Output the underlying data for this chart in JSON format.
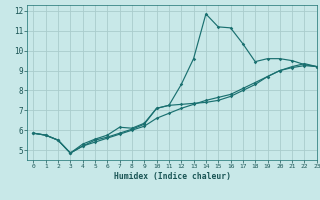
{
  "xlabel": "Humidex (Indice chaleur)",
  "ylabel": "",
  "bg_color": "#c8e8e8",
  "grid_color": "#aacccc",
  "line_color": "#1a7070",
  "xlim": [
    -0.5,
    23
  ],
  "ylim": [
    4.5,
    12.3
  ],
  "xticks": [
    0,
    1,
    2,
    3,
    4,
    5,
    6,
    7,
    8,
    9,
    10,
    11,
    12,
    13,
    14,
    15,
    16,
    17,
    18,
    19,
    20,
    21,
    22,
    23
  ],
  "yticks": [
    5,
    6,
    7,
    8,
    9,
    10,
    11,
    12
  ],
  "line1_x": [
    0,
    1,
    2,
    3,
    4,
    5,
    6,
    7,
    8,
    9,
    10,
    11,
    12,
    13,
    14,
    15,
    16,
    17,
    18,
    19,
    20,
    21,
    22,
    23
  ],
  "line1_y": [
    5.85,
    5.75,
    5.5,
    4.85,
    5.2,
    5.5,
    5.65,
    5.85,
    6.05,
    6.3,
    7.1,
    7.25,
    8.3,
    9.6,
    11.85,
    11.2,
    11.15,
    10.35,
    9.45,
    9.6,
    9.6,
    9.5,
    9.3,
    9.2
  ],
  "line2_x": [
    0,
    1,
    2,
    3,
    4,
    5,
    6,
    7,
    8,
    9,
    10,
    11,
    12,
    13,
    14,
    15,
    16,
    17,
    18,
    19,
    20,
    21,
    22,
    23
  ],
  "line2_y": [
    5.85,
    5.75,
    5.5,
    4.85,
    5.3,
    5.55,
    5.75,
    6.15,
    6.1,
    6.35,
    7.1,
    7.25,
    7.3,
    7.35,
    7.4,
    7.5,
    7.7,
    8.0,
    8.3,
    8.7,
    9.0,
    9.2,
    9.35,
    9.2
  ],
  "line3_x": [
    0,
    1,
    2,
    3,
    4,
    5,
    6,
    7,
    8,
    9,
    10,
    11,
    12,
    13,
    14,
    15,
    16,
    17,
    18,
    19,
    20,
    21,
    22,
    23
  ],
  "line3_y": [
    5.85,
    5.75,
    5.5,
    4.85,
    5.2,
    5.4,
    5.6,
    5.8,
    6.0,
    6.2,
    6.6,
    6.85,
    7.1,
    7.3,
    7.5,
    7.65,
    7.8,
    8.1,
    8.4,
    8.7,
    9.0,
    9.15,
    9.25,
    9.2
  ]
}
